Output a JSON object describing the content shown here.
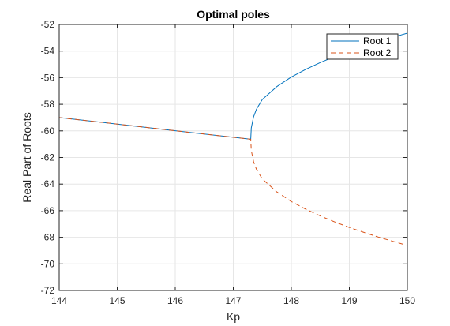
{
  "chart_data": {
    "type": "line",
    "title": "Optimal poles",
    "xlabel": "Kp",
    "ylabel": "Real Part of Roots",
    "xlim": [
      144,
      150
    ],
    "ylim": [
      -72,
      -52
    ],
    "xticks": [
      144,
      145,
      146,
      147,
      148,
      149,
      150
    ],
    "yticks": [
      -72,
      -70,
      -68,
      -66,
      -64,
      -62,
      -60,
      -58,
      -56,
      -54,
      -52
    ],
    "grid": true,
    "legend_position": "top-right",
    "series": [
      {
        "name": "Root 1",
        "color": "#0072BD",
        "style": "solid",
        "x": [
          144,
          145,
          146,
          147,
          147.3,
          147.31,
          147.35,
          147.4,
          147.5,
          147.75,
          148,
          148.25,
          148.5,
          148.75,
          149,
          149.25,
          149.5,
          149.75,
          150
        ],
        "y": [
          -59.0,
          -59.49,
          -59.99,
          -60.48,
          -60.63,
          -59.78,
          -58.94,
          -58.36,
          -57.64,
          -56.67,
          -55.95,
          -55.37,
          -54.86,
          -54.41,
          -54.0,
          -53.63,
          -53.28,
          -52.96,
          -52.65
        ]
      },
      {
        "name": "Root 2",
        "color": "#D95319",
        "style": "dashed",
        "x": [
          144,
          145,
          146,
          147,
          147.3,
          147.31,
          147.35,
          147.4,
          147.5,
          147.75,
          148,
          148.25,
          148.5,
          148.75,
          149,
          149.25,
          149.5,
          149.75,
          150
        ],
        "y": [
          -59.0,
          -59.49,
          -59.99,
          -60.48,
          -60.63,
          -61.48,
          -62.32,
          -62.9,
          -63.62,
          -64.59,
          -65.31,
          -65.89,
          -66.4,
          -66.85,
          -67.26,
          -67.63,
          -67.98,
          -68.3,
          -68.61
        ]
      }
    ]
  }
}
